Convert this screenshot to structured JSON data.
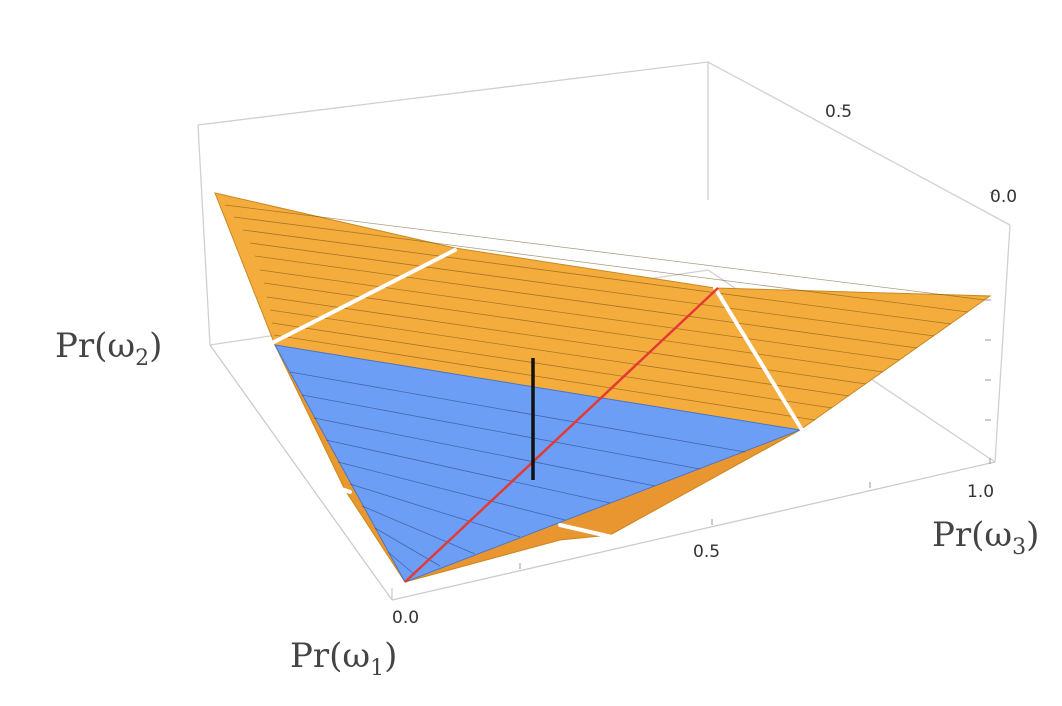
{
  "chart_data": {
    "type": "surface3d",
    "axes": {
      "x": {
        "label": "Pr(ω",
        "label_sub": "1",
        "label_close": ")",
        "ticks": [
          "0.0"
        ]
      },
      "y": {
        "label": "Pr(ω",
        "label_sub": "3",
        "label_close": ")",
        "ticks": [
          "0.5",
          "1.0"
        ]
      },
      "z": {
        "label": "Pr(ω",
        "label_sub": "2",
        "label_close": ")",
        "ticks": [
          "0.5",
          "0.0"
        ]
      }
    },
    "surfaces": [
      {
        "name": "",
        "color": "#f4ad3d",
        "style": "hatched"
      },
      {
        "name": "",
        "color": "#6d9ef5",
        "style": "hatched"
      }
    ],
    "lines": [
      {
        "color": "#e53935"
      },
      {
        "color": "#111111"
      },
      {
        "color": "#ffffff"
      }
    ],
    "box": true,
    "grid": false
  }
}
